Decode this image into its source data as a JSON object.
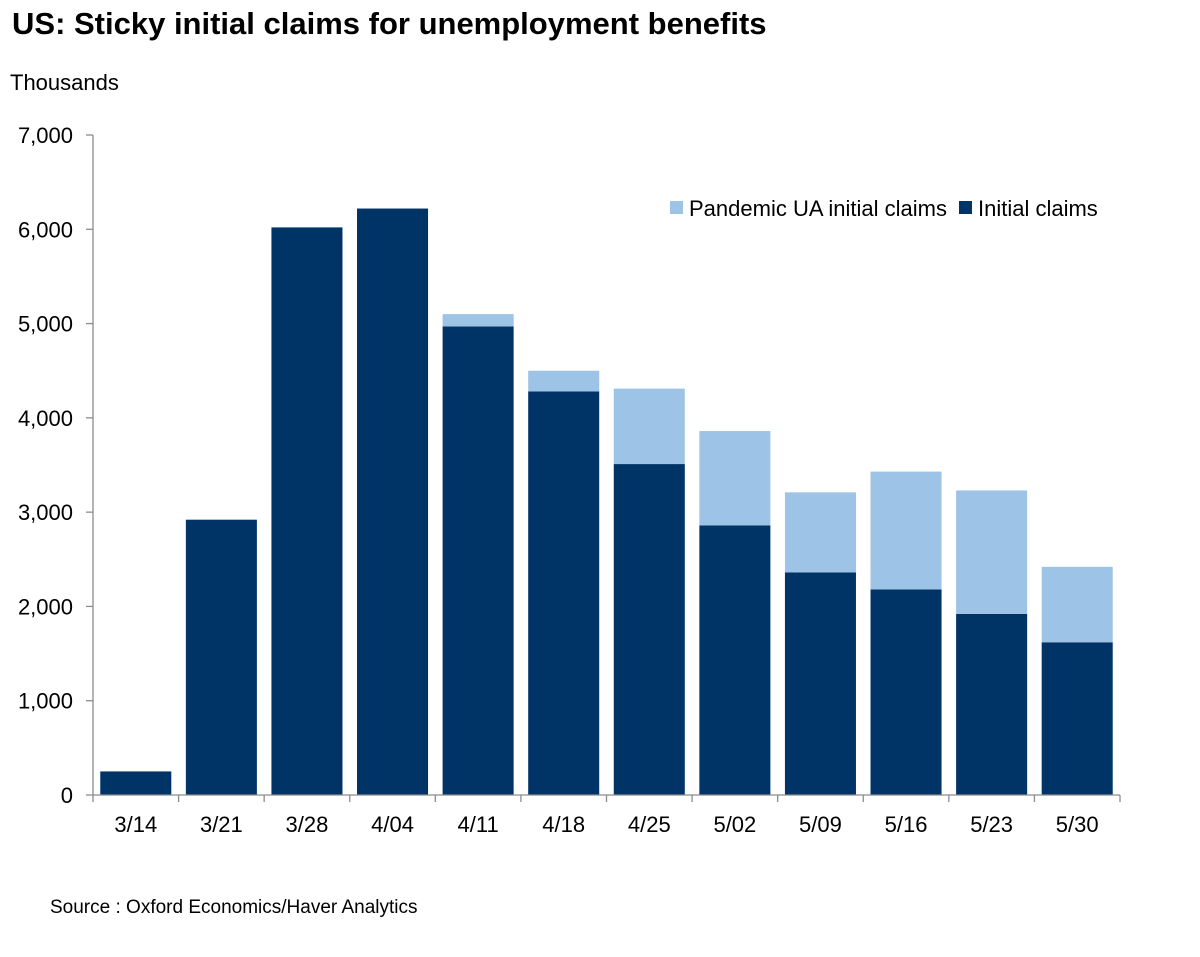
{
  "chart_data": {
    "type": "bar",
    "stacked": true,
    "title": "US: Sticky initial claims for unemployment benefits",
    "ylabel": "Thousands",
    "xlabel": "",
    "source": "Source : Oxford Economics/Haver Analytics",
    "categories": [
      "3/14",
      "3/21",
      "3/28",
      "4/04",
      "4/11",
      "4/18",
      "4/25",
      "5/02",
      "5/09",
      "5/16",
      "5/23",
      "5/30"
    ],
    "series": [
      {
        "name": "Initial claims",
        "color": "#003366",
        "values": [
          250,
          2920,
          6020,
          6220,
          4970,
          4280,
          3510,
          2860,
          2360,
          2180,
          1920,
          1620
        ]
      },
      {
        "name": "Pandemic UA initial claims",
        "color": "#9DC3E6",
        "values": [
          0,
          0,
          0,
          0,
          130,
          220,
          800,
          1000,
          850,
          1250,
          1310,
          800
        ]
      }
    ],
    "legend_order": [
      "Pandemic UA initial claims",
      "Initial claims"
    ],
    "legend_position": "top-right",
    "ylim": [
      0,
      7000
    ],
    "yticks": [
      0,
      1000,
      2000,
      3000,
      4000,
      5000,
      6000,
      7000
    ],
    "ytick_labels": [
      "0",
      "1,000",
      "2,000",
      "3,000",
      "4,000",
      "5,000",
      "6,000",
      "7,000"
    ],
    "grid": false
  }
}
